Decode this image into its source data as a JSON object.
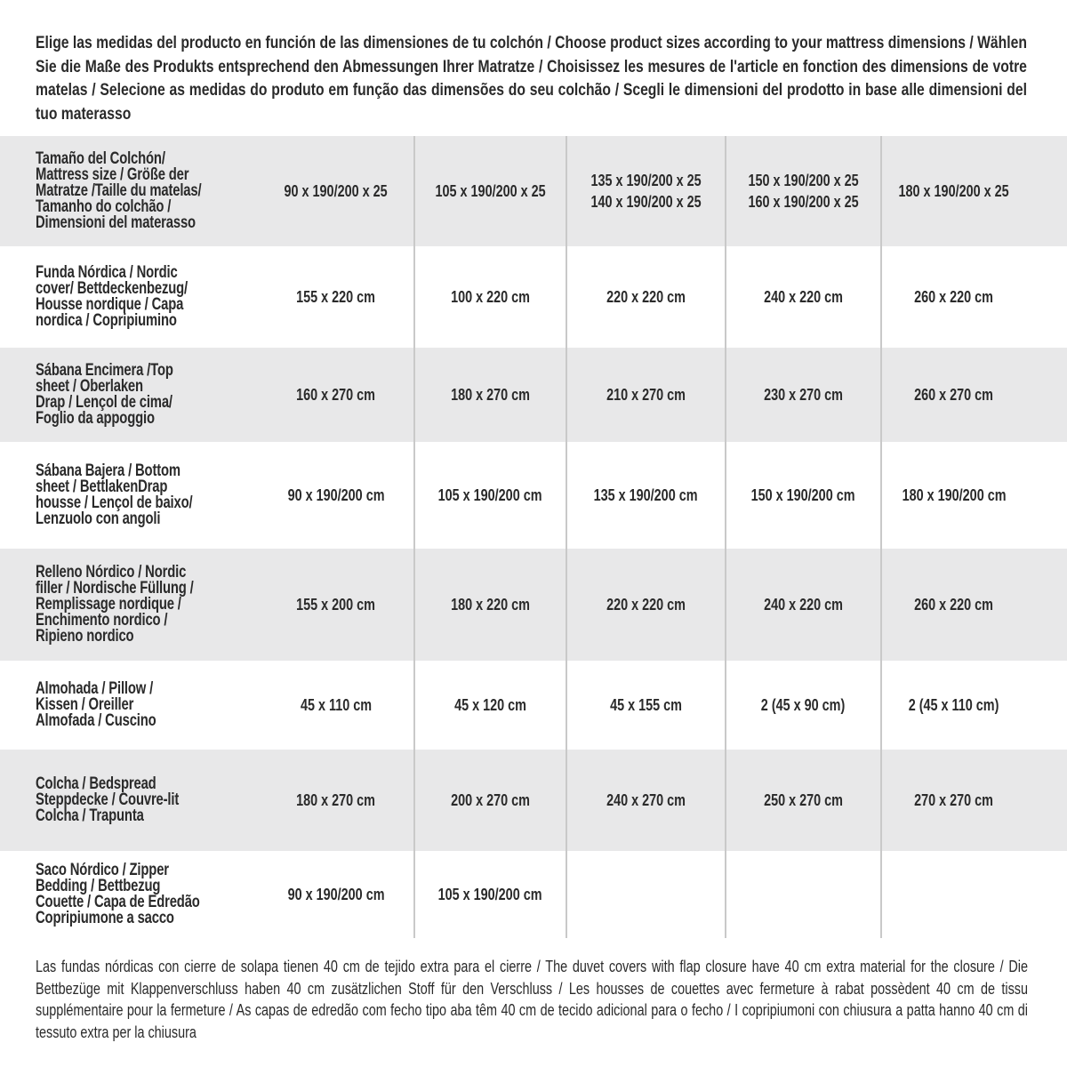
{
  "intro": "Elige las medidas del producto en función de las dimensiones de tu colchón / Choose product sizes according to your mattress dimensions / Wählen Sie die Maße des Produkts entsprechend den Abmessungen Ihrer Matratze / Choisissez les mesures de l'article en fonction des dimensions de votre matelas / Selecione as medidas do produto em função das dimensões do seu colchão / Scegli le dimensioni del prodotto in base alle dimensioni del tuo materasso",
  "table": {
    "rows": [
      {
        "label": "Tamaño del Colchón/\nMattress size / Größe der\nMatratze /Taille du matelas/\nTamanho do colchão /\nDimensioni del materasso",
        "cells": [
          "90 x 190/200 x 25",
          "105 x 190/200 x 25",
          "135 x 190/200 x 25\n140 x 190/200 x 25",
          "150 x 190/200 x 25\n160 x 190/200 x 25",
          "180 x 190/200 x 25"
        ]
      },
      {
        "label": "Funda Nórdica /   Nordic\ncover/ Bettdeckenbezug/\nHousse nordique  / Capa\nnordica / Copripiumino",
        "cells": [
          "155 x 220 cm",
          "100 x 220 cm",
          "220 x 220 cm",
          "240 x 220 cm",
          "260 x 220 cm"
        ]
      },
      {
        "label": "Sábana Encimera /Top\nsheet / Oberlaken\nDrap / Lençol de cima/\nFoglio da appoggio",
        "cells": [
          "160 x 270 cm",
          "180 x 270 cm",
          "210 x 270 cm",
          "230 x 270 cm",
          "260 x 270 cm"
        ]
      },
      {
        "label": "Sábana Bajera / Bottom\nsheet / BettlakenDrap\nhousse / Lençol de baixo/\nLenzuolo con angoli",
        "cells": [
          "90 x 190/200 cm",
          "105 x 190/200 cm",
          "135 x 190/200 cm",
          "150 x 190/200 cm",
          "180 x 190/200 cm"
        ]
      },
      {
        "label": "Relleno Nórdico / Nordic\nfiller / Nordische Füllung /\nRemplissage nordique /\nEnchimento nordico /\nRipieno nordico",
        "cells": [
          "155 x 200 cm",
          "180 x 220 cm",
          "220 x 220 cm",
          "240 x 220 cm",
          "260 x 220 cm"
        ]
      },
      {
        "label": "Almohada  / Pillow /\nKissen / Oreiller\nAlmofada / Cuscino",
        "cells": [
          "45 x 110 cm",
          "45 x 120 cm",
          "45 x 155 cm",
          "2 (45 x 90 cm)",
          "2 (45 x 110 cm)"
        ]
      },
      {
        "label": "Colcha / Bedspread\nSteppdecke / Couvre-lit\nColcha / Trapunta",
        "cells": [
          "180 x 270 cm",
          "200 x 270 cm",
          "240 x 270 cm",
          "250 x 270 cm",
          "270 x 270 cm"
        ]
      },
      {
        "label": "Saco Nórdico / Zipper\nBedding / Bettbezug\nCouette  / Capa de Edredão\nCopripiumone a sacco",
        "cells": [
          "90 x 190/200 cm",
          "105 x 190/200 cm",
          "",
          "",
          ""
        ]
      }
    ]
  },
  "footer": "Las fundas nórdicas con cierre de solapa tienen 40 cm de tejido extra para el cierre  / The duvet covers with flap closure have 40 cm extra material for the closure / Die Bettbezüge mit Klappenverschluss haben 40 cm zusätzlichen Stoff für den Verschluss / Les housses de couettes avec fermeture à rabat possèdent 40 cm de tissu supplémentaire pour la fermeture / As capas de edredão com fecho tipo aba têm 40 cm de tecido adicional para o fecho / I copripiumoni con chiusura a patta hanno 40 cm di tessuto extra per la chiusura",
  "colors": {
    "row_alt": "#e8e8e9",
    "divider": "#c9c9c9",
    "text": "#2a2a2a"
  }
}
